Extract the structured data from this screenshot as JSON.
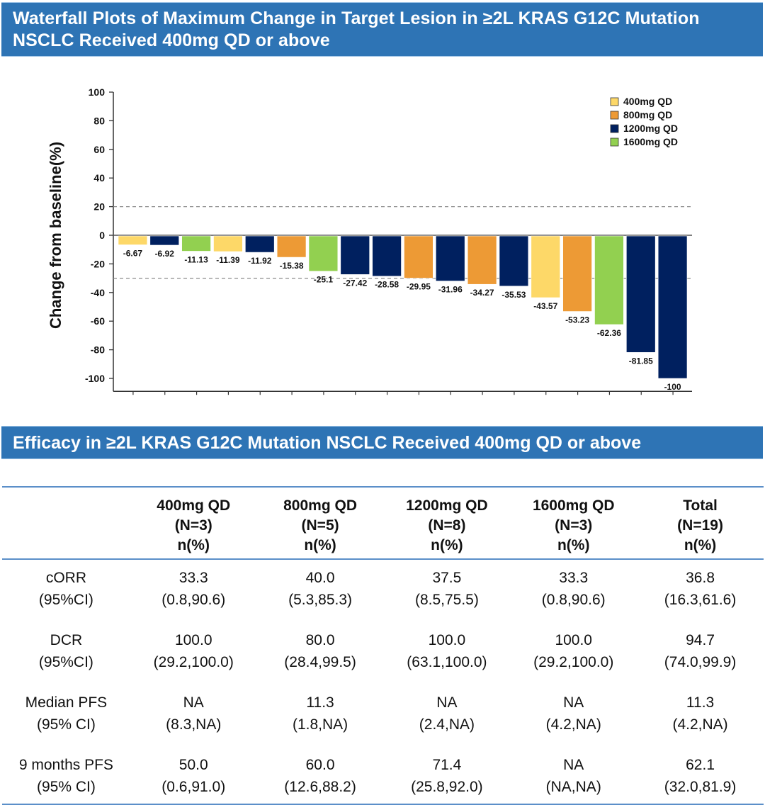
{
  "sections": {
    "waterfall_title": "Waterfall Plots of  Maximum Change in Target Lesion in ≥2L KRAS G12C Mutation NSCLC Received 400mg QD or above",
    "efficacy_title": "Efficacy in ≥2L KRAS G12C Mutation NSCLC Received 400mg QD or above"
  },
  "chart_data": {
    "type": "bar",
    "title": "Waterfall Plots of  Maximum Change in Target Lesion in ≥2L KRAS G12C Mutation NSCLC Received 400mg QD or above",
    "xlabel": "",
    "ylabel": "Change from baseline(%)",
    "ylim": [
      -110,
      100
    ],
    "yticks": [
      100,
      80,
      60,
      40,
      20,
      0,
      -20,
      -40,
      -60,
      -80,
      -100
    ],
    "reference_lines": [
      20,
      -30
    ],
    "grid": false,
    "legend_position": "top-right",
    "legend": [
      {
        "label": "400mg QD",
        "color": "#fdd868"
      },
      {
        "label": "800mg QD",
        "color": "#ed9a35"
      },
      {
        "label": "1200mg QD",
        "color": "#00205f"
      },
      {
        "label": "1600mg QD",
        "color": "#92d050"
      }
    ],
    "values": [
      -6.67,
      -6.92,
      -11.13,
      -11.39,
      -11.92,
      -15.38,
      -25.1,
      -27.42,
      -28.58,
      -29.95,
      -31.96,
      -34.27,
      -35.53,
      -43.57,
      -53.23,
      -62.36,
      -81.85,
      -100
    ],
    "labels": [
      "-6.67",
      "-6.92",
      "-11.13",
      "-11.39",
      "-11.92",
      "-15.38",
      "-25.1",
      "-27.42",
      "-28.58",
      "-29.95",
      "-31.96",
      "-34.27",
      "-35.53",
      "-43.57",
      "-53.23",
      "-62.36",
      "-81.85",
      "-100"
    ],
    "dose_groups": [
      "400mg QD",
      "1200mg QD",
      "1600mg QD",
      "400mg QD",
      "1200mg QD",
      "800mg QD",
      "1600mg QD",
      "1200mg QD",
      "1200mg QD",
      "800mg QD",
      "1200mg QD",
      "800mg QD",
      "1200mg QD",
      "400mg QD",
      "800mg QD",
      "1600mg QD",
      "1200mg QD",
      "1200mg QD"
    ]
  },
  "efficacy_table": {
    "columns": [
      {
        "dose": "",
        "n": "",
        "unit": ""
      },
      {
        "dose": "400mg QD",
        "n": "(N=3)",
        "unit": "n(%)"
      },
      {
        "dose": "800mg QD",
        "n": "(N=5)",
        "unit": "n(%)"
      },
      {
        "dose": "1200mg QD",
        "n": "(N=8)",
        "unit": "n(%)"
      },
      {
        "dose": "1600mg QD",
        "n": "(N=3)",
        "unit": "n(%)"
      },
      {
        "dose": "Total",
        "n": "(N=19)",
        "unit": "n(%)"
      }
    ],
    "rows": [
      {
        "label": "cORR",
        "sublabel": "(95%CI)",
        "cells": [
          {
            "value": "33.3",
            "ci": "(0.8,90.6)"
          },
          {
            "value": "40.0",
            "ci": "(5.3,85.3)"
          },
          {
            "value": "37.5",
            "ci": "(8.5,75.5)"
          },
          {
            "value": "33.3",
            "ci": "(0.8,90.6)"
          },
          {
            "value": "36.8",
            "ci": "(16.3,61.6)"
          }
        ]
      },
      {
        "label": "DCR",
        "sublabel": "(95%CI)",
        "cells": [
          {
            "value": "100.0",
            "ci": "(29.2,100.0)"
          },
          {
            "value": "80.0",
            "ci": "(28.4,99.5)"
          },
          {
            "value": "100.0",
            "ci": "(63.1,100.0)"
          },
          {
            "value": "100.0",
            "ci": "(29.2,100.0)"
          },
          {
            "value": "94.7",
            "ci": "(74.0,99.9)"
          }
        ]
      },
      {
        "label": "Median PFS",
        "sublabel": "(95% CI)",
        "cells": [
          {
            "value": "NA",
            "ci": "(8.3,NA)"
          },
          {
            "value": "11.3",
            "ci": "(1.8,NA)"
          },
          {
            "value": "NA",
            "ci": "(2.4,NA)"
          },
          {
            "value": "NA",
            "ci": "(4.2,NA)"
          },
          {
            "value": "11.3",
            "ci": "(4.2,NA)"
          }
        ]
      },
      {
        "label": "9 months PFS",
        "sublabel": "(95% CI)",
        "cells": [
          {
            "value": "50.0",
            "ci": "(0.6,91.0)"
          },
          {
            "value": "60.0",
            "ci": "(12.6,88.2)"
          },
          {
            "value": "71.4",
            "ci": "(25.8,92.0)"
          },
          {
            "value": "NA",
            "ci": "(NA,NA)"
          },
          {
            "value": "62.1",
            "ci": "(32.0,81.9)"
          }
        ]
      }
    ]
  }
}
